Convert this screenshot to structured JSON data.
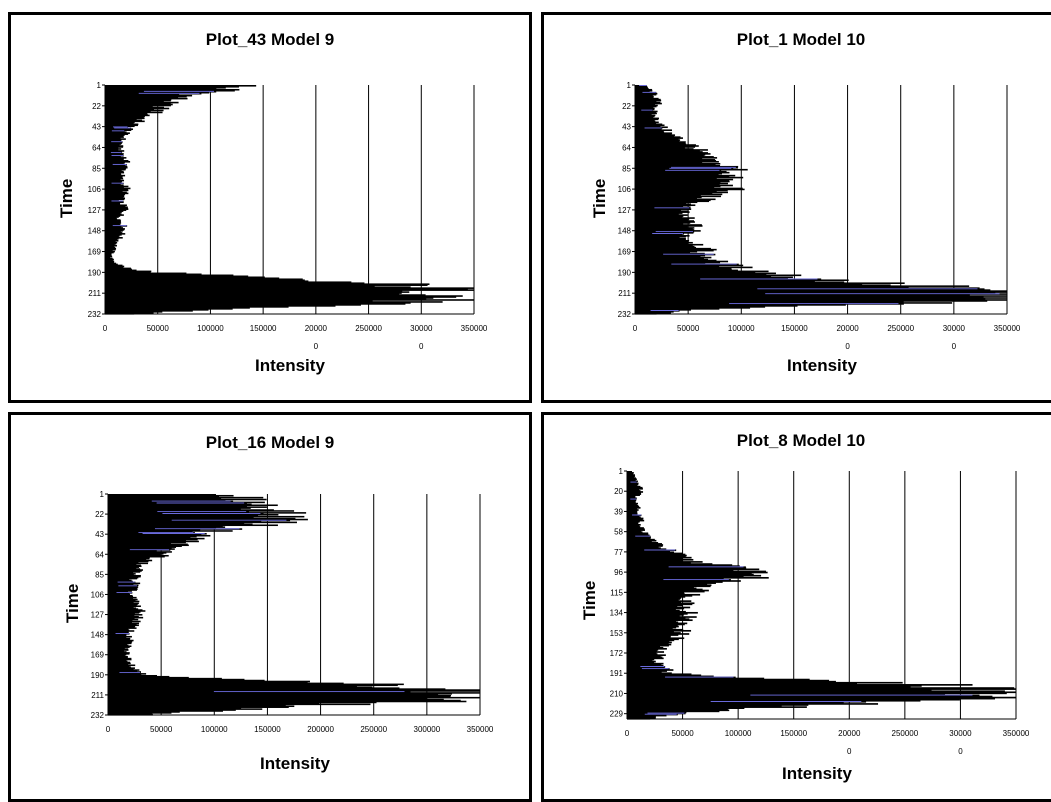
{
  "chart_data": [
    {
      "type": "bar",
      "orientation": "horizontal",
      "title": "Plot_43 Model 9",
      "xlabel": "Intensity",
      "ylabel": "Time",
      "xlim": [
        0,
        350000
      ],
      "x_ticks": [
        "0",
        "50000",
        "100000",
        "150000",
        "20000",
        "250000",
        "30000",
        "350000"
      ],
      "x_tick_overflow": [
        "",
        "",
        "",
        "",
        "0",
        "",
        "0",
        ""
      ],
      "y_ticks": [
        "1",
        "22",
        "43",
        "64",
        "85",
        "106",
        "127",
        "148",
        "169",
        "190",
        "211",
        "232"
      ],
      "ylim": [
        1,
        232
      ],
      "grid": "vertical",
      "profile": [
        [
          1,
          138000
        ],
        [
          3,
          122000
        ],
        [
          6,
          118000
        ],
        [
          9,
          95000
        ],
        [
          12,
          78000
        ],
        [
          15,
          70000
        ],
        [
          18,
          62000
        ],
        [
          21,
          58000
        ],
        [
          24,
          55000
        ],
        [
          27,
          52000
        ],
        [
          30,
          45000
        ],
        [
          33,
          40000
        ],
        [
          36,
          35000
        ],
        [
          40,
          30000
        ],
        [
          45,
          25000
        ],
        [
          50,
          20000
        ],
        [
          55,
          18000
        ],
        [
          60,
          16000
        ],
        [
          65,
          15000
        ],
        [
          70,
          18000
        ],
        [
          75,
          20000
        ],
        [
          80,
          22000
        ],
        [
          85,
          20000
        ],
        [
          90,
          18000
        ],
        [
          95,
          16000
        ],
        [
          100,
          18000
        ],
        [
          105,
          22000
        ],
        [
          110,
          20000
        ],
        [
          115,
          17000
        ],
        [
          120,
          16000
        ],
        [
          125,
          22000
        ],
        [
          130,
          18000
        ],
        [
          135,
          14000
        ],
        [
          140,
          17000
        ],
        [
          145,
          20000
        ],
        [
          150,
          18000
        ],
        [
          155,
          15000
        ],
        [
          160,
          12000
        ],
        [
          165,
          10000
        ],
        [
          170,
          8000
        ],
        [
          175,
          6000
        ],
        [
          180,
          10000
        ],
        [
          185,
          20000
        ],
        [
          188,
          30000
        ],
        [
          190,
          55000
        ],
        [
          193,
          110000
        ],
        [
          196,
          160000
        ],
        [
          199,
          210000
        ],
        [
          202,
          280000
        ],
        [
          205,
          330000
        ],
        [
          208,
          350000
        ],
        [
          211,
          350000
        ],
        [
          214,
          350000
        ],
        [
          217,
          330000
        ],
        [
          220,
          300000
        ],
        [
          223,
          230000
        ],
        [
          226,
          150000
        ],
        [
          229,
          80000
        ],
        [
          232,
          30000
        ]
      ]
    },
    {
      "type": "bar",
      "orientation": "horizontal",
      "title": "Plot_1 Model 10",
      "xlabel": "Intensity",
      "ylabel": "Time",
      "xlim": [
        0,
        350000
      ],
      "x_ticks": [
        "0",
        "50000",
        "100000",
        "150000",
        "20000",
        "250000",
        "30000",
        "350000"
      ],
      "x_tick_overflow": [
        "",
        "",
        "",
        "",
        "0",
        "",
        "0",
        ""
      ],
      "y_ticks": [
        "1",
        "22",
        "43",
        "64",
        "85",
        "106",
        "127",
        "148",
        "169",
        "190",
        "211",
        "232"
      ],
      "ylim": [
        1,
        232
      ],
      "grid": "vertical",
      "profile": [
        [
          1,
          10000
        ],
        [
          5,
          15000
        ],
        [
          10,
          20000
        ],
        [
          15,
          22000
        ],
        [
          20,
          23000
        ],
        [
          25,
          20000
        ],
        [
          30,
          18000
        ],
        [
          35,
          22000
        ],
        [
          40,
          25000
        ],
        [
          45,
          30000
        ],
        [
          50,
          35000
        ],
        [
          55,
          45000
        ],
        [
          60,
          55000
        ],
        [
          65,
          60000
        ],
        [
          70,
          65000
        ],
        [
          75,
          70000
        ],
        [
          80,
          80000
        ],
        [
          85,
          100000
        ],
        [
          90,
          95000
        ],
        [
          95,
          90000
        ],
        [
          100,
          85000
        ],
        [
          105,
          95000
        ],
        [
          110,
          80000
        ],
        [
          115,
          70000
        ],
        [
          120,
          60000
        ],
        [
          125,
          50000
        ],
        [
          130,
          45000
        ],
        [
          135,
          50000
        ],
        [
          140,
          55000
        ],
        [
          145,
          60000
        ],
        [
          150,
          55000
        ],
        [
          155,
          50000
        ],
        [
          160,
          60000
        ],
        [
          165,
          70000
        ],
        [
          170,
          65000
        ],
        [
          175,
          75000
        ],
        [
          180,
          80000
        ],
        [
          185,
          100000
        ],
        [
          190,
          130000
        ],
        [
          195,
          160000
        ],
        [
          200,
          220000
        ],
        [
          205,
          300000
        ],
        [
          208,
          350000
        ],
        [
          211,
          350000
        ],
        [
          214,
          350000
        ],
        [
          217,
          350000
        ],
        [
          220,
          300000
        ],
        [
          223,
          200000
        ],
        [
          226,
          100000
        ],
        [
          229,
          50000
        ],
        [
          232,
          25000
        ]
      ]
    },
    {
      "type": "bar",
      "orientation": "horizontal",
      "title": "Plot_16 Model 9",
      "xlabel": "Intensity",
      "ylabel": "Time",
      "xlim": [
        0,
        350000
      ],
      "x_ticks": [
        "0",
        "50000",
        "100000",
        "150000",
        "200000",
        "250000",
        "300000",
        "350000"
      ],
      "x_tick_overflow": [
        "",
        "",
        "",
        "",
        "",
        "",
        "",
        ""
      ],
      "y_ticks": [
        "1",
        "22",
        "43",
        "64",
        "85",
        "106",
        "127",
        "148",
        "169",
        "190",
        "211",
        "232"
      ],
      "ylim": [
        1,
        232
      ],
      "grid": "vertical",
      "profile": [
        [
          1,
          100000
        ],
        [
          4,
          130000
        ],
        [
          8,
          140000
        ],
        [
          12,
          150000
        ],
        [
          16,
          160000
        ],
        [
          20,
          165000
        ],
        [
          24,
          170000
        ],
        [
          28,
          180000
        ],
        [
          32,
          150000
        ],
        [
          36,
          120000
        ],
        [
          40,
          100000
        ],
        [
          44,
          90000
        ],
        [
          48,
          85000
        ],
        [
          52,
          75000
        ],
        [
          56,
          65000
        ],
        [
          60,
          55000
        ],
        [
          64,
          60000
        ],
        [
          68,
          40000
        ],
        [
          72,
          35000
        ],
        [
          76,
          30000
        ],
        [
          80,
          30000
        ],
        [
          85,
          30000
        ],
        [
          90,
          25000
        ],
        [
          95,
          28000
        ],
        [
          100,
          25000
        ],
        [
          105,
          22000
        ],
        [
          110,
          25000
        ],
        [
          115,
          28000
        ],
        [
          120,
          30000
        ],
        [
          125,
          32000
        ],
        [
          130,
          30000
        ],
        [
          135,
          28000
        ],
        [
          140,
          25000
        ],
        [
          145,
          22000
        ],
        [
          150,
          20000
        ],
        [
          155,
          22000
        ],
        [
          160,
          20000
        ],
        [
          165,
          18000
        ],
        [
          170,
          20000
        ],
        [
          175,
          22000
        ],
        [
          180,
          25000
        ],
        [
          185,
          28000
        ],
        [
          190,
          40000
        ],
        [
          194,
          100000
        ],
        [
          198,
          200000
        ],
        [
          202,
          300000
        ],
        [
          206,
          350000
        ],
        [
          210,
          350000
        ],
        [
          214,
          350000
        ],
        [
          218,
          300000
        ],
        [
          222,
          200000
        ],
        [
          226,
          130000
        ],
        [
          229,
          80000
        ],
        [
          232,
          40000
        ]
      ]
    },
    {
      "type": "bar",
      "orientation": "horizontal",
      "title": "Plot_8 Model 10",
      "xlabel": "Intensity",
      "ylabel": "Time",
      "xlim": [
        0,
        350000
      ],
      "x_ticks": [
        "0",
        "50000",
        "100000",
        "150000",
        "20000",
        "250000",
        "30000",
        "350000"
      ],
      "x_tick_overflow": [
        "",
        "",
        "",
        "",
        "0",
        "",
        "0",
        ""
      ],
      "y_ticks": [
        "1",
        "20",
        "39",
        "58",
        "77",
        "96",
        "115",
        "134",
        "153",
        "172",
        "191",
        "210",
        "229"
      ],
      "ylim": [
        1,
        234
      ],
      "grid": "vertical",
      "profile": [
        [
          1,
          5000
        ],
        [
          5,
          8000
        ],
        [
          10,
          10000
        ],
        [
          15,
          12000
        ],
        [
          20,
          15000
        ],
        [
          25,
          8000
        ],
        [
          30,
          10000
        ],
        [
          35,
          12000
        ],
        [
          40,
          10000
        ],
        [
          45,
          15000
        ],
        [
          50,
          12000
        ],
        [
          55,
          15000
        ],
        [
          60,
          18000
        ],
        [
          65,
          25000
        ],
        [
          70,
          30000
        ],
        [
          75,
          40000
        ],
        [
          80,
          50000
        ],
        [
          85,
          60000
        ],
        [
          88,
          80000
        ],
        [
          91,
          100000
        ],
        [
          94,
          120000
        ],
        [
          97,
          130000
        ],
        [
          100,
          120000
        ],
        [
          103,
          100000
        ],
        [
          106,
          90000
        ],
        [
          109,
          80000
        ],
        [
          112,
          70000
        ],
        [
          115,
          65000
        ],
        [
          120,
          60000
        ],
        [
          125,
          58000
        ],
        [
          130,
          55000
        ],
        [
          135,
          60000
        ],
        [
          140,
          55000
        ],
        [
          145,
          50000
        ],
        [
          150,
          52000
        ],
        [
          155,
          50000
        ],
        [
          160,
          45000
        ],
        [
          165,
          35000
        ],
        [
          170,
          30000
        ],
        [
          175,
          32000
        ],
        [
          180,
          28000
        ],
        [
          185,
          35000
        ],
        [
          190,
          40000
        ],
        [
          193,
          70000
        ],
        [
          196,
          130000
        ],
        [
          199,
          200000
        ],
        [
          202,
          280000
        ],
        [
          205,
          340000
        ],
        [
          208,
          350000
        ],
        [
          211,
          350000
        ],
        [
          214,
          340000
        ],
        [
          217,
          300000
        ],
        [
          220,
          220000
        ],
        [
          223,
          150000
        ],
        [
          226,
          90000
        ],
        [
          229,
          50000
        ],
        [
          232,
          30000
        ],
        [
          234,
          20000
        ]
      ]
    }
  ]
}
